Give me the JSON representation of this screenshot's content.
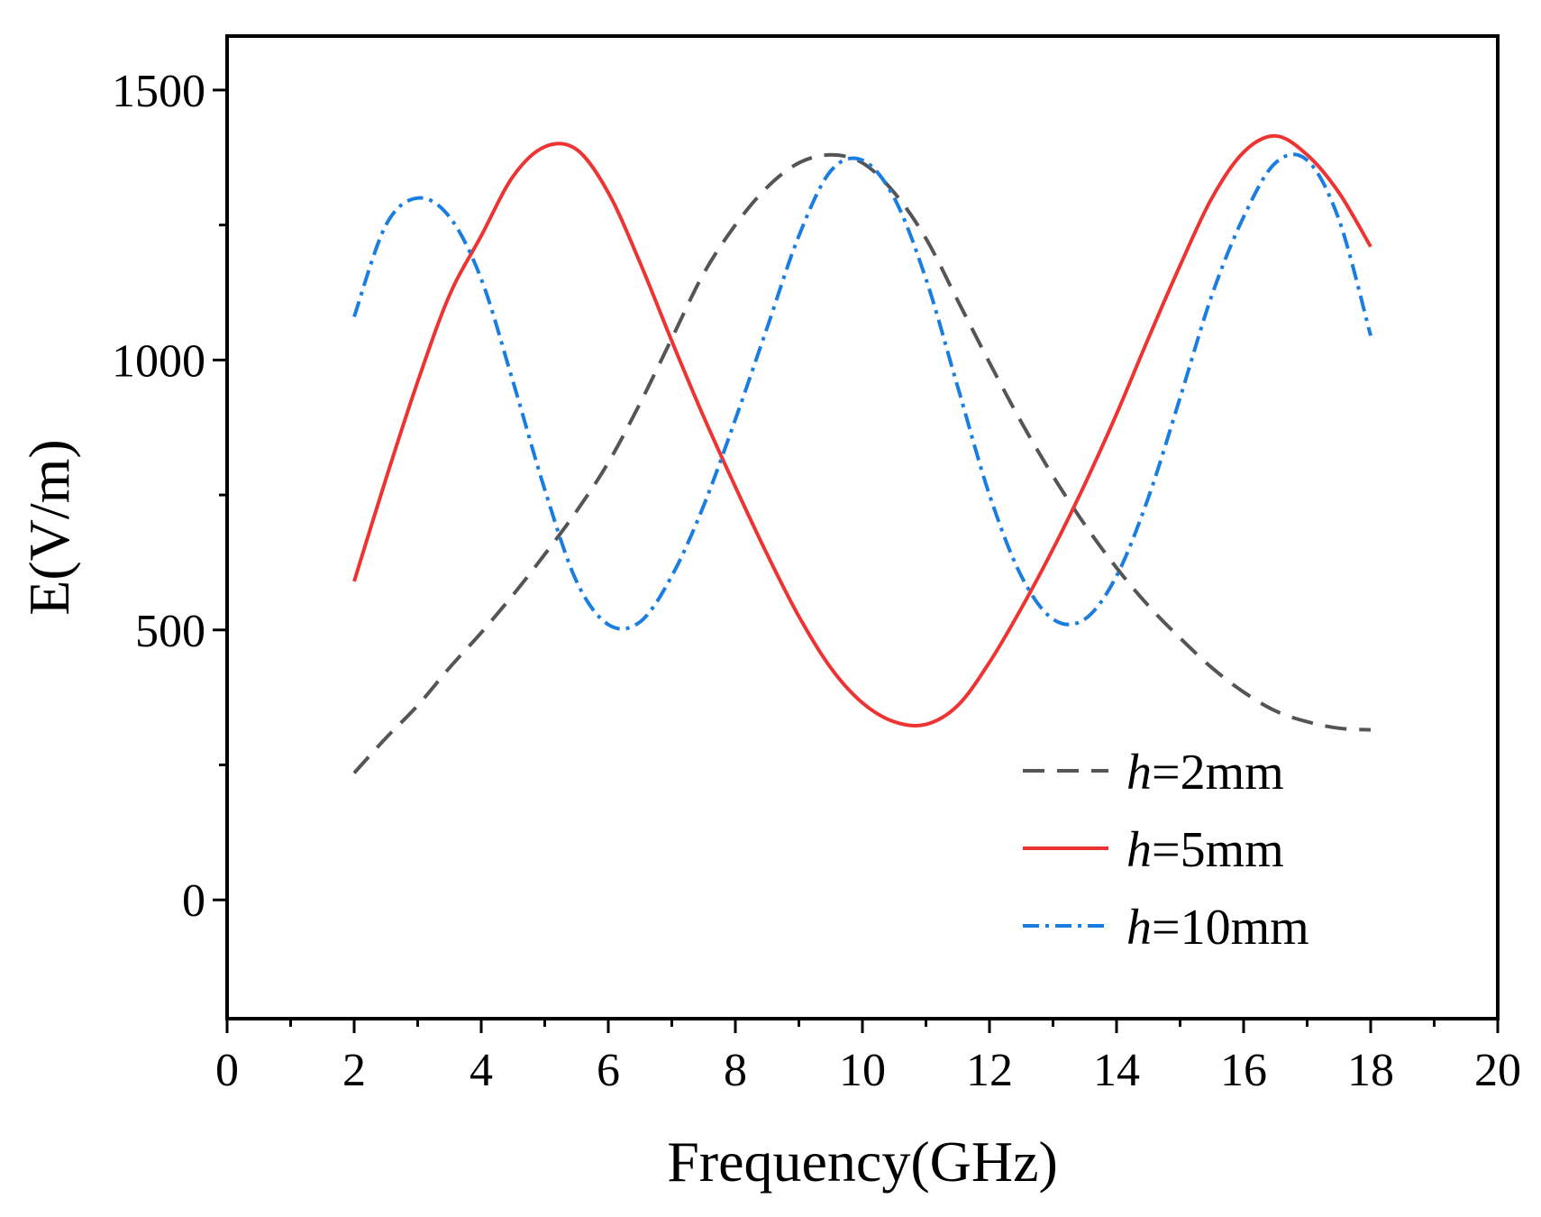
{
  "chart_data": {
    "type": "line",
    "title": "",
    "xlabel": "Frequency(GHz)",
    "ylabel": "E(V/m)",
    "xlim": [
      0,
      20
    ],
    "ylim": [
      -220,
      1600
    ],
    "xticks": [
      0,
      2,
      4,
      6,
      8,
      10,
      12,
      14,
      16,
      18,
      20
    ],
    "xtick_labels": [
      "0",
      "2",
      "4",
      "6",
      "8",
      "10",
      "12",
      "14",
      "16",
      "18",
      "20"
    ],
    "yticks": [
      0,
      500,
      1000,
      1500
    ],
    "ytick_labels": [
      "0",
      "500",
      "1000",
      "1500"
    ],
    "grid": false,
    "legend_position": "bottom-right",
    "x": [
      2,
      2.5,
      3,
      3.5,
      4,
      4.5,
      5,
      5.5,
      6,
      6.5,
      7,
      7.5,
      8,
      8.5,
      9,
      9.5,
      10,
      10.5,
      11,
      11.5,
      12,
      12.5,
      13,
      13.5,
      14,
      14.5,
      15,
      15.5,
      16,
      16.5,
      17,
      17.5,
      18
    ],
    "series": [
      {
        "name": "h=2mm",
        "legend_italic": "h",
        "legend_rest": "=2mm",
        "color": "#555555",
        "style": "dashed",
        "values": [
          235,
          300,
          360,
          430,
          495,
          565,
          640,
          720,
          810,
          920,
          1040,
          1160,
          1250,
          1320,
          1365,
          1380,
          1365,
          1310,
          1225,
          1110,
          995,
          885,
          785,
          695,
          615,
          545,
          485,
          430,
          385,
          350,
          330,
          318,
          315
        ]
      },
      {
        "name": "h=5mm",
        "legend_italic": "h",
        "legend_rest": "=5mm",
        "color": "#ee3333",
        "style": "solid",
        "values": [
          590,
          780,
          960,
          1120,
          1230,
          1340,
          1395,
          1390,
          1310,
          1180,
          1035,
          895,
          765,
          640,
          525,
          430,
          365,
          330,
          325,
          360,
          440,
          540,
          650,
          770,
          900,
          1040,
          1175,
          1300,
          1385,
          1415,
          1380,
          1310,
          1210
        ]
      },
      {
        "name": "h=10mm",
        "legend_italic": "h",
        "legend_rest": "=10mm",
        "color": "#1a7ee0",
        "style": "dashdot",
        "values": [
          1080,
          1250,
          1300,
          1265,
          1150,
          960,
          760,
          590,
          510,
          515,
          600,
          730,
          890,
          1060,
          1230,
          1350,
          1370,
          1300,
          1150,
          950,
          750,
          600,
          520,
          520,
          600,
          745,
          930,
          1120,
          1265,
          1365,
          1370,
          1260,
          1045
        ]
      }
    ]
  }
}
